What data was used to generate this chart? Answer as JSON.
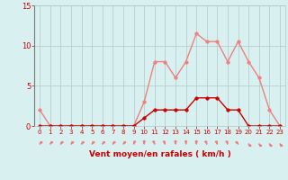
{
  "x": [
    0,
    1,
    2,
    3,
    4,
    5,
    6,
    7,
    8,
    9,
    10,
    11,
    12,
    13,
    14,
    15,
    16,
    17,
    18,
    19,
    20,
    21,
    22,
    23
  ],
  "rafales": [
    2,
    0,
    0,
    0,
    0,
    0,
    0,
    0,
    0,
    0,
    3,
    8,
    8,
    6,
    8,
    11.5,
    10.5,
    10.5,
    8,
    10.5,
    8,
    6,
    2,
    0
  ],
  "moyen": [
    0,
    0,
    0,
    0,
    0,
    0,
    0,
    0,
    0,
    0,
    1,
    2,
    2,
    2,
    2,
    3.5,
    3.5,
    3.5,
    2,
    2,
    0,
    0,
    0,
    0
  ],
  "wind_dirs": [
    225,
    225,
    225,
    225,
    225,
    225,
    225,
    225,
    225,
    202,
    180,
    157,
    157,
    180,
    180,
    180,
    157,
    157,
    157,
    135,
    315,
    315,
    315,
    315
  ],
  "color_rafales": "#f08080",
  "color_moyen": "#cc0000",
  "bg_color": "#d8f0f0",
  "grid_color": "#b0c8c8",
  "axis_color": "#cc0000",
  "xlabel": "Vent moyen/en rafales ( km/h )",
  "ylim": [
    0,
    15
  ],
  "xlim": [
    -0.5,
    23.5
  ],
  "yticks": [
    0,
    5,
    10,
    15
  ],
  "xticks": [
    0,
    1,
    2,
    3,
    4,
    5,
    6,
    7,
    8,
    9,
    10,
    11,
    12,
    13,
    14,
    15,
    16,
    17,
    18,
    19,
    20,
    21,
    22,
    23
  ],
  "linewidth": 1.0,
  "markersize": 2.5
}
